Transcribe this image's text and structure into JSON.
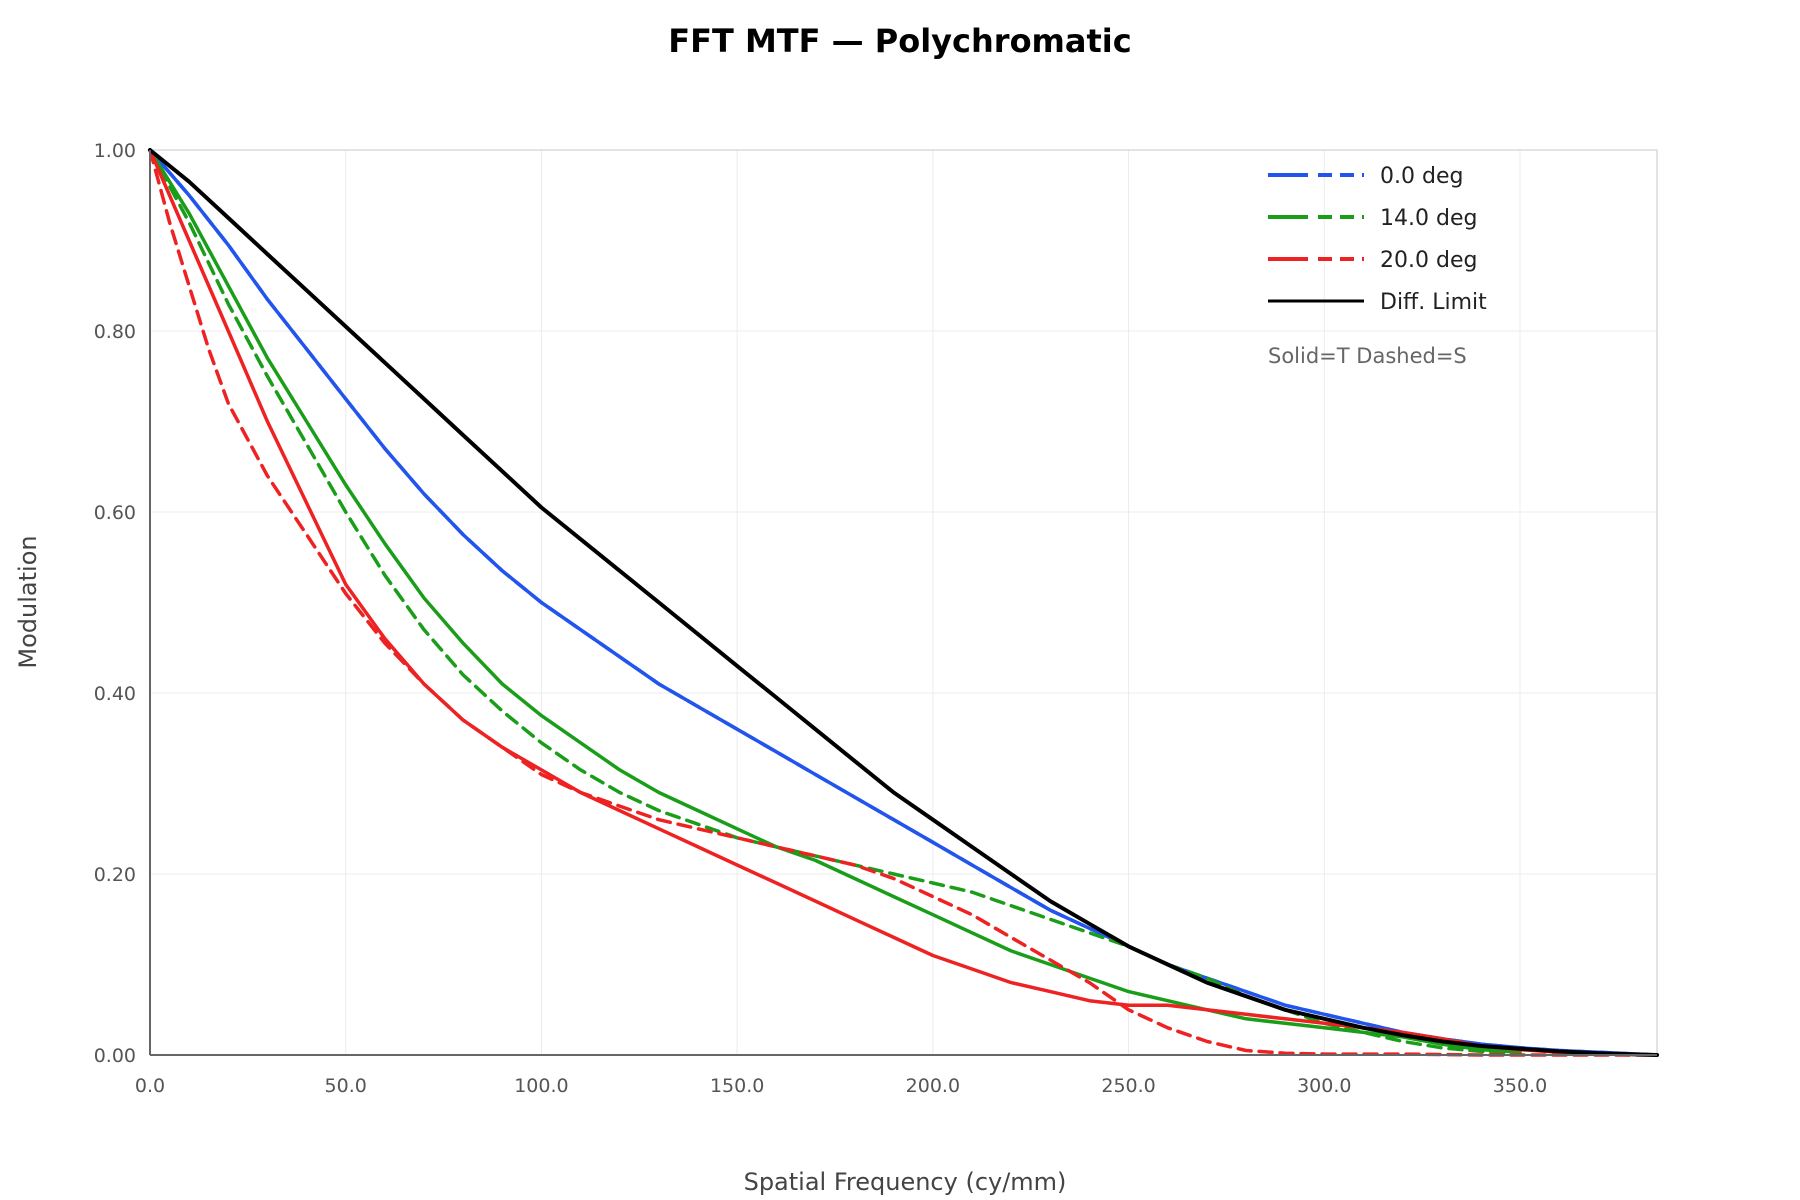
{
  "chart_data": {
    "type": "line",
    "title": "FFT MTF — Polychromatic",
    "xlabel": "Spatial Frequency (cy/mm)",
    "ylabel": "Modulation",
    "xlim": [
      0,
      385
    ],
    "ylim": [
      0,
      1.0
    ],
    "x_ticks": [
      "0.0",
      "50.0",
      "100.0",
      "150.0",
      "200.0",
      "250.0",
      "300.0",
      "350.0"
    ],
    "y_ticks": [
      "0.00",
      "0.20",
      "0.40",
      "0.60",
      "0.80",
      "1.00"
    ],
    "grid": true,
    "legend_position": "top-right",
    "legend_note": "Solid=T Dashed=S",
    "legend": [
      {
        "label": "0.0 deg",
        "color": "#2255ee",
        "style": "tangential+sagittal"
      },
      {
        "label": "14.0 deg",
        "color": "#1a9e1a",
        "style": "tangential+sagittal"
      },
      {
        "label": "20.0 deg",
        "color": "#ee2222",
        "style": "tangential+sagittal"
      },
      {
        "label": "Diff. Limit",
        "color": "#000000",
        "style": "solid"
      }
    ],
    "series": [
      {
        "field": "0.0 deg",
        "orientation": "T",
        "color": "#2255ee",
        "dash": "solid",
        "x": [
          0,
          10,
          20,
          30,
          40,
          50,
          60,
          70,
          80,
          90,
          100,
          110,
          120,
          130,
          140,
          150,
          160,
          170,
          180,
          190,
          200,
          210,
          220,
          230,
          240,
          250,
          260,
          270,
          280,
          290,
          300,
          310,
          320,
          330,
          340,
          350,
          360,
          370,
          385
        ],
        "y": [
          1.0,
          0.95,
          0.895,
          0.835,
          0.78,
          0.725,
          0.67,
          0.62,
          0.575,
          0.535,
          0.5,
          0.47,
          0.44,
          0.41,
          0.385,
          0.36,
          0.335,
          0.31,
          0.285,
          0.26,
          0.235,
          0.21,
          0.185,
          0.16,
          0.14,
          0.12,
          0.1,
          0.085,
          0.07,
          0.055,
          0.045,
          0.035,
          0.025,
          0.018,
          0.012,
          0.008,
          0.005,
          0.003,
          0.0
        ]
      },
      {
        "field": "0.0 deg",
        "orientation": "S",
        "color": "#2255ee",
        "dash": "dashed",
        "x": [
          0,
          10,
          20,
          30,
          40,
          50,
          60,
          70,
          80,
          90,
          100,
          110,
          120,
          130,
          140,
          150,
          160,
          170,
          180,
          190,
          200,
          210,
          220,
          230,
          240,
          250,
          260,
          270,
          280,
          290,
          300,
          310,
          320,
          330,
          340,
          350,
          360,
          370,
          385
        ],
        "y": [
          1.0,
          0.95,
          0.895,
          0.835,
          0.78,
          0.725,
          0.67,
          0.62,
          0.575,
          0.535,
          0.5,
          0.47,
          0.44,
          0.41,
          0.385,
          0.36,
          0.335,
          0.31,
          0.285,
          0.26,
          0.235,
          0.21,
          0.185,
          0.16,
          0.14,
          0.12,
          0.1,
          0.085,
          0.07,
          0.055,
          0.045,
          0.035,
          0.025,
          0.018,
          0.012,
          0.008,
          0.005,
          0.003,
          0.0
        ]
      },
      {
        "field": "14.0 deg",
        "orientation": "T",
        "color": "#1a9e1a",
        "dash": "solid",
        "x": [
          0,
          10,
          20,
          30,
          40,
          50,
          60,
          70,
          80,
          90,
          100,
          110,
          120,
          130,
          140,
          150,
          160,
          170,
          180,
          190,
          200,
          210,
          220,
          230,
          240,
          250,
          260,
          270,
          280,
          290,
          300,
          310,
          320,
          330,
          340,
          350
        ],
        "y": [
          1.0,
          0.93,
          0.85,
          0.77,
          0.7,
          0.63,
          0.565,
          0.505,
          0.455,
          0.41,
          0.375,
          0.345,
          0.315,
          0.29,
          0.27,
          0.25,
          0.23,
          0.215,
          0.195,
          0.175,
          0.155,
          0.135,
          0.115,
          0.1,
          0.085,
          0.07,
          0.06,
          0.05,
          0.04,
          0.035,
          0.03,
          0.025,
          0.02,
          0.012,
          0.006,
          0.003
        ]
      },
      {
        "field": "14.0 deg",
        "orientation": "S",
        "color": "#1a9e1a",
        "dash": "dashed",
        "x": [
          0,
          10,
          20,
          30,
          40,
          50,
          60,
          70,
          80,
          90,
          100,
          110,
          120,
          130,
          140,
          150,
          160,
          170,
          180,
          190,
          200,
          210,
          220,
          230,
          240,
          250,
          260,
          270,
          280,
          290,
          300,
          310,
          320,
          330,
          340,
          350
        ],
        "y": [
          1.0,
          0.92,
          0.83,
          0.75,
          0.675,
          0.6,
          0.53,
          0.47,
          0.42,
          0.38,
          0.345,
          0.315,
          0.29,
          0.27,
          0.255,
          0.24,
          0.23,
          0.22,
          0.21,
          0.2,
          0.19,
          0.18,
          0.165,
          0.15,
          0.135,
          0.12,
          0.1,
          0.085,
          0.065,
          0.05,
          0.035,
          0.025,
          0.015,
          0.008,
          0.004,
          0.002
        ]
      },
      {
        "field": "20.0 deg",
        "orientation": "T",
        "color": "#ee2222",
        "dash": "solid",
        "x": [
          0,
          10,
          20,
          30,
          40,
          50,
          60,
          70,
          80,
          90,
          100,
          110,
          120,
          130,
          140,
          150,
          160,
          170,
          180,
          190,
          200,
          210,
          220,
          230,
          240,
          250,
          260,
          270,
          280,
          290,
          300,
          310,
          320,
          330,
          340,
          350,
          360,
          385
        ],
        "y": [
          1.0,
          0.9,
          0.8,
          0.7,
          0.61,
          0.52,
          0.46,
          0.41,
          0.37,
          0.34,
          0.315,
          0.29,
          0.27,
          0.25,
          0.23,
          0.21,
          0.19,
          0.17,
          0.15,
          0.13,
          0.11,
          0.095,
          0.08,
          0.07,
          0.06,
          0.055,
          0.055,
          0.05,
          0.045,
          0.04,
          0.035,
          0.03,
          0.025,
          0.018,
          0.01,
          0.006,
          0.003,
          0.0
        ]
      },
      {
        "field": "20.0 deg",
        "orientation": "S",
        "color": "#ee2222",
        "dash": "dashed",
        "x": [
          0,
          5,
          10,
          15,
          20,
          30,
          40,
          50,
          60,
          70,
          80,
          90,
          100,
          110,
          120,
          130,
          140,
          150,
          160,
          170,
          180,
          190,
          200,
          210,
          220,
          230,
          240,
          250,
          260,
          270,
          280,
          290,
          300,
          320,
          340,
          385
        ],
        "y": [
          1.0,
          0.92,
          0.85,
          0.78,
          0.72,
          0.64,
          0.575,
          0.51,
          0.455,
          0.41,
          0.37,
          0.34,
          0.31,
          0.29,
          0.275,
          0.26,
          0.25,
          0.24,
          0.23,
          0.22,
          0.21,
          0.195,
          0.175,
          0.155,
          0.13,
          0.105,
          0.08,
          0.05,
          0.03,
          0.015,
          0.005,
          0.002,
          0.001,
          0.001,
          0.0,
          0.0
        ]
      },
      {
        "field": "Diff. Limit",
        "orientation": "",
        "color": "#000000",
        "dash": "solid",
        "x": [
          0,
          10,
          20,
          30,
          40,
          50,
          60,
          70,
          80,
          90,
          100,
          110,
          120,
          130,
          140,
          150,
          160,
          170,
          180,
          190,
          200,
          210,
          220,
          230,
          240,
          250,
          260,
          270,
          280,
          290,
          300,
          310,
          320,
          330,
          340,
          350,
          360,
          370,
          385
        ],
        "y": [
          1.0,
          0.965,
          0.925,
          0.885,
          0.845,
          0.805,
          0.765,
          0.725,
          0.685,
          0.645,
          0.605,
          0.57,
          0.535,
          0.5,
          0.465,
          0.43,
          0.395,
          0.36,
          0.325,
          0.29,
          0.26,
          0.23,
          0.2,
          0.17,
          0.145,
          0.12,
          0.1,
          0.08,
          0.065,
          0.05,
          0.04,
          0.03,
          0.022,
          0.015,
          0.01,
          0.007,
          0.004,
          0.002,
          0.0
        ]
      }
    ]
  }
}
